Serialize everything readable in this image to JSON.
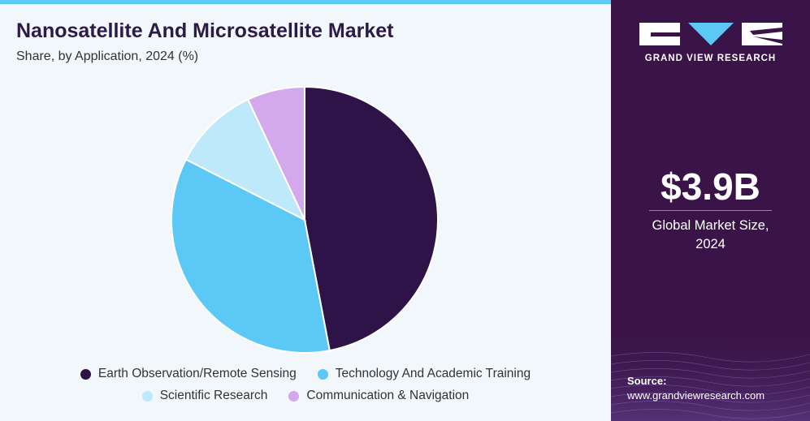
{
  "header": {
    "title": "Nanosatellite And Microsatellite Market",
    "subtitle": "Share, by Application, 2024 (%)"
  },
  "chart_data": {
    "type": "pie",
    "title": "Nanosatellite And Microsatellite Market",
    "subtitle": "Share, by Application, 2024 (%)",
    "categories": [
      "Earth Observation/Remote Sensing",
      "Technology And Academic Training",
      "Scientific Research",
      "Communication & Navigation"
    ],
    "values": [
      47.0,
      35.5,
      10.5,
      7.0
    ],
    "colors": [
      "#2d1347",
      "#5bc8f5",
      "#bde9fa",
      "#d3a8ec"
    ],
    "legend": "bottom",
    "start_angle": "top",
    "direction": "clockwise"
  },
  "legend": {
    "rows": [
      [
        {
          "label": "Earth Observation/Remote Sensing",
          "color": "#2d1347"
        },
        {
          "label": "Technology And Academic Training",
          "color": "#5bc8f5"
        }
      ],
      [
        {
          "label": "Scientific Research",
          "color": "#bde9fa"
        },
        {
          "label": "Communication & Navigation",
          "color": "#d3a8ec"
        }
      ]
    ]
  },
  "sidebar": {
    "brand": "GRAND VIEW RESEARCH",
    "logo_icon": "grand-view-research-logo",
    "market_value": "$3.9B",
    "market_label_line1": "Global Market Size,",
    "market_label_line2": "2024",
    "source_label": "Source:",
    "source_url": "www.grandviewresearch.com"
  },
  "colors": {
    "accent": "#5bc8f5",
    "sidebar_bg": "#3a1448",
    "title": "#2d1a47"
  }
}
